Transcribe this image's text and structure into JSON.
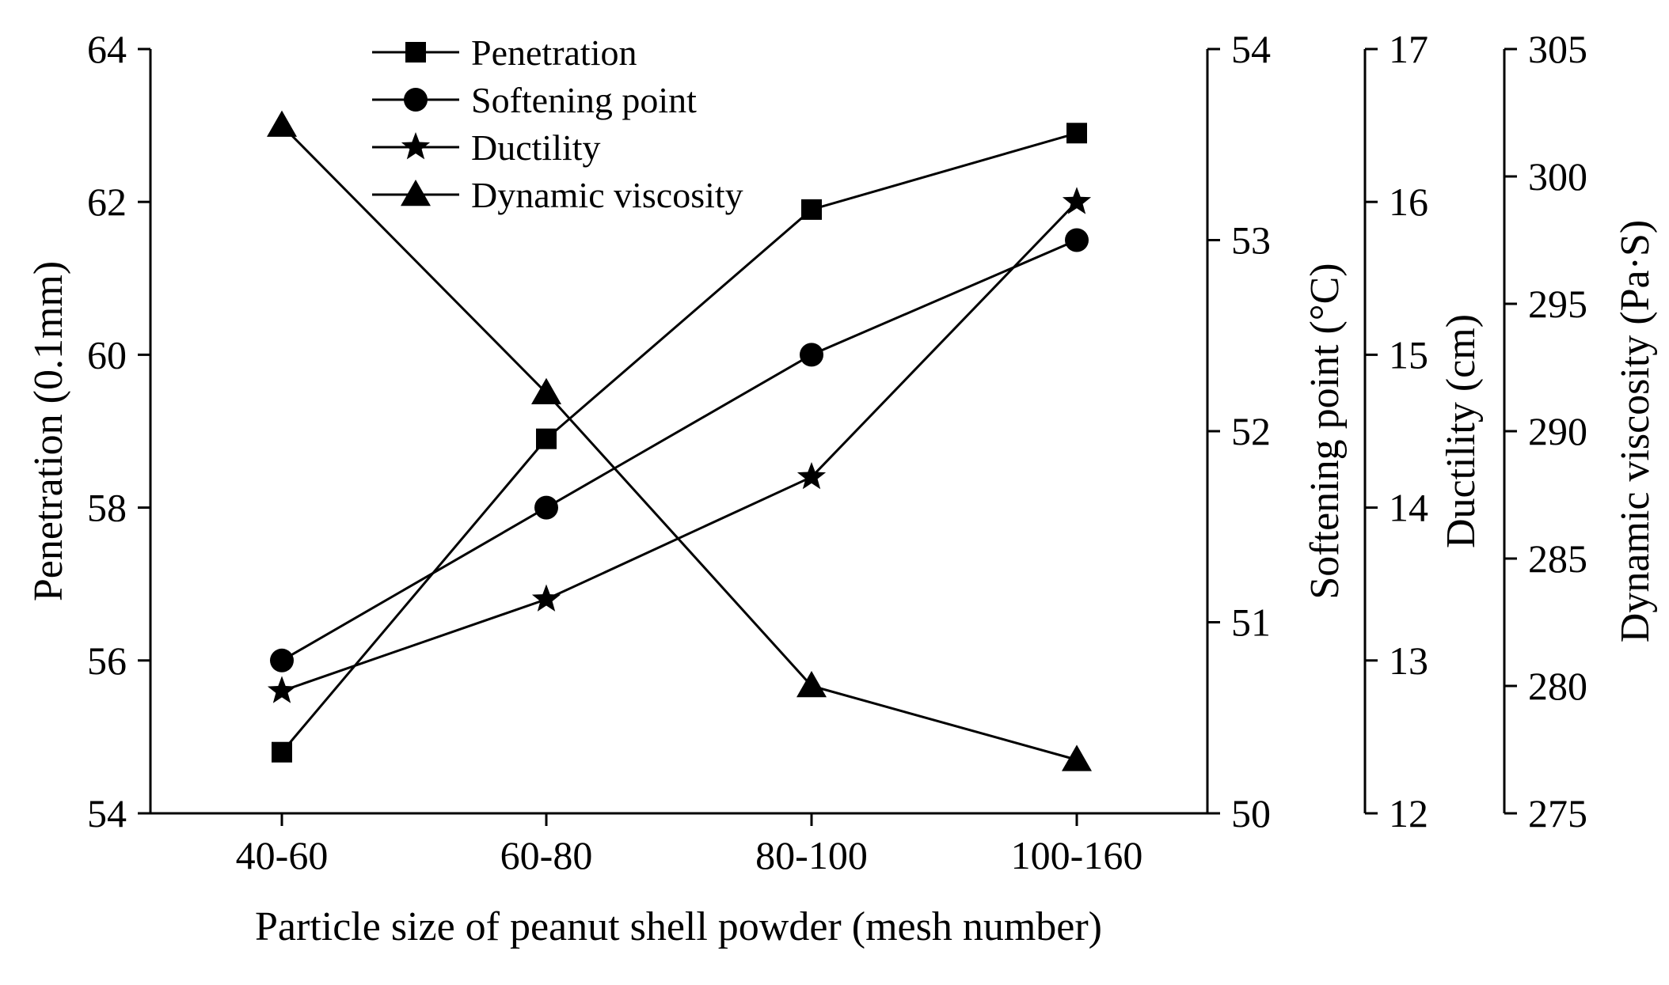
{
  "chart_data": {
    "type": "line",
    "xlabel": "Particle size of peanut shell powder (mesh number)",
    "categories": [
      "40-60",
      "60-80",
      "80-100",
      "100-160"
    ],
    "axes": [
      {
        "id": "penetration",
        "label": "Penetration (0.1mm)",
        "range": [
          54,
          64
        ],
        "ticks": [
          "54",
          "56",
          "58",
          "60",
          "62",
          "64"
        ],
        "position": "left"
      },
      {
        "id": "softening",
        "label": "Softening point (°C)",
        "range": [
          50,
          54
        ],
        "ticks": [
          "50",
          "51",
          "52",
          "53",
          "54"
        ],
        "position": "right"
      },
      {
        "id": "ductility",
        "label": "Ductility (cm)",
        "range": [
          12,
          17
        ],
        "ticks": [
          "12",
          "13",
          "14",
          "15",
          "16",
          "17"
        ],
        "position": "right"
      },
      {
        "id": "viscosity",
        "label": "Dynamic viscosity (Pa·S)",
        "range": [
          275,
          305
        ],
        "ticks": [
          "275",
          "280",
          "285",
          "290",
          "295",
          "300",
          "305"
        ],
        "position": "right"
      }
    ],
    "series": [
      {
        "name": "Penetration",
        "axis": "penetration",
        "marker": "square",
        "values": [
          54.8,
          58.9,
          61.9,
          62.9
        ]
      },
      {
        "name": "Softening point",
        "axis": "softening",
        "marker": "circle",
        "values": [
          50.8,
          51.6,
          52.4,
          53.0
        ]
      },
      {
        "name": "Ductility",
        "axis": "ductility",
        "marker": "star",
        "values": [
          12.8,
          13.4,
          14.2,
          16.0
        ]
      },
      {
        "name": "Dynamic viscosity",
        "axis": "viscosity",
        "marker": "triangle",
        "values": [
          302.0,
          291.5,
          280.0,
          277.1
        ]
      }
    ],
    "legend_position": "top-left",
    "grid": false
  }
}
